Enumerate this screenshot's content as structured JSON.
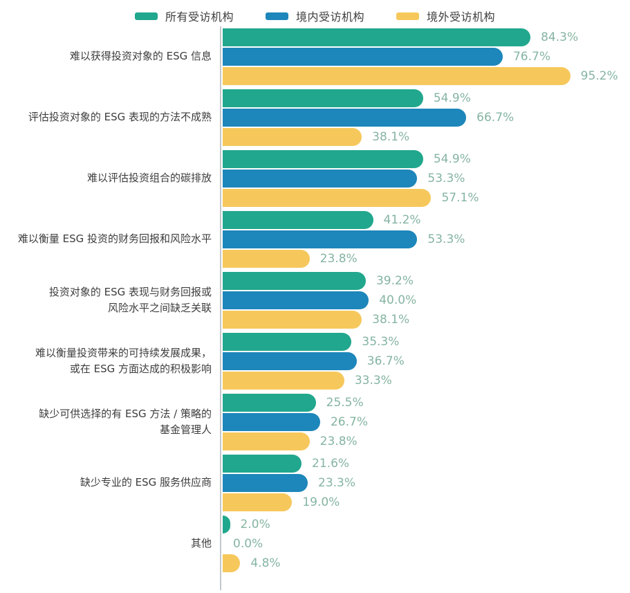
{
  "legend": {
    "items": [
      {
        "label": "所有受访机构",
        "color": "#21a78d"
      },
      {
        "label": "境内受访机构",
        "color": "#1d86ba"
      },
      {
        "label": "境外受访机构",
        "color": "#f6c85c"
      }
    ]
  },
  "chart_data": {
    "type": "bar",
    "orientation": "horizontal",
    "unit": "%",
    "xlim": [
      0,
      100
    ],
    "grid": false,
    "legend_position": "top",
    "value_labels_shown": true,
    "categories": [
      [
        "难以获得投资对象的 ESG 信息"
      ],
      [
        "评估投资对象的 ESG 表现的方法不成熟"
      ],
      [
        "难以评估投资组合的碳排放"
      ],
      [
        "难以衡量 ESG 投资的财务回报和风险水平"
      ],
      [
        "投资对象的 ESG 表现与财务回报或",
        "风险水平之间缺乏关联"
      ],
      [
        "难以衡量投资带来的可持续发展成果，",
        "或在 ESG 方面达成的积极影响"
      ],
      [
        "缺少可供选择的有 ESG 方法 / 策略的",
        "基金管理人"
      ],
      [
        "缺少专业的 ESG 服务供应商"
      ],
      [
        "其他"
      ]
    ],
    "series": [
      {
        "name": "所有受访机构",
        "color": "#21a78d",
        "values": [
          84.3,
          54.9,
          54.9,
          41.2,
          39.2,
          35.3,
          25.5,
          21.6,
          2.0
        ]
      },
      {
        "name": "境内受访机构",
        "color": "#1d86ba",
        "values": [
          76.7,
          66.7,
          53.3,
          53.3,
          40.0,
          36.7,
          26.7,
          23.3,
          0.0
        ]
      },
      {
        "name": "境外受访机构",
        "color": "#f6c85c",
        "values": [
          95.2,
          38.1,
          57.1,
          23.8,
          38.1,
          33.3,
          23.8,
          19.0,
          4.8
        ]
      }
    ]
  },
  "style": {
    "value_label_color": "#85b4a2",
    "category_label_color": "#3d3d3d",
    "axis_line_color": "#c3c8cc",
    "background": "#ffffff"
  }
}
